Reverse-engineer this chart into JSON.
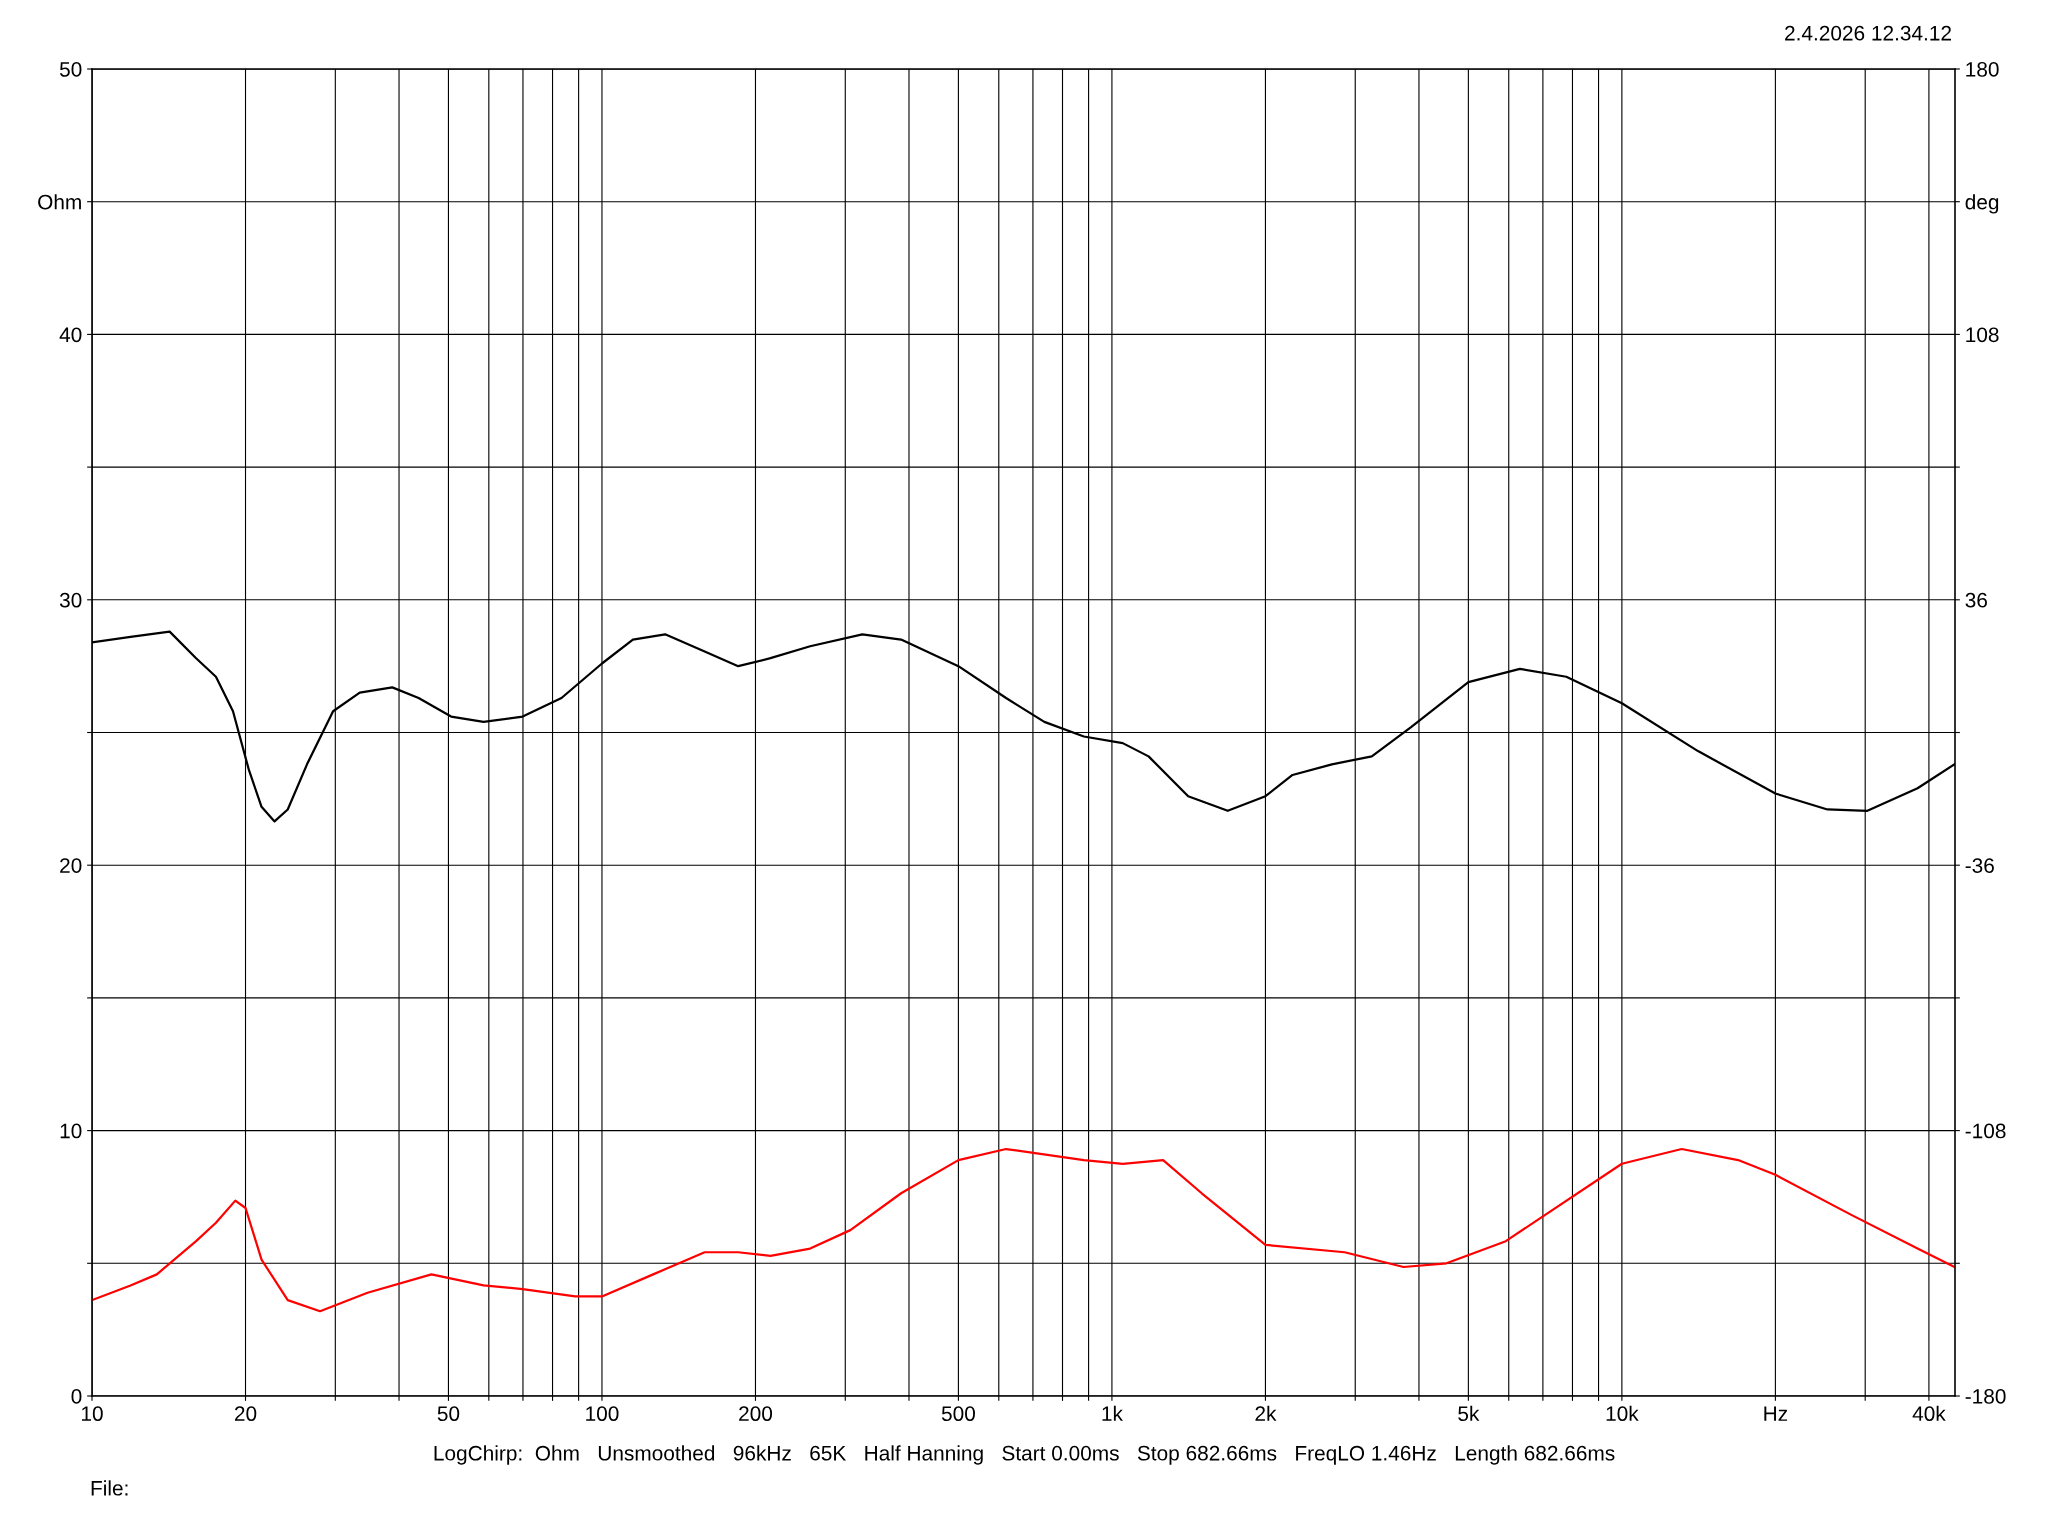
{
  "chart_data": {
    "type": "line",
    "log": "x",
    "grid": true,
    "annotations": [
      "2.4.2026 12.34.12",
      "LogChirp:  Ohm   Unsmoothed   96kHz   65K   Half Hanning   Start 0.00ms   Stop 682.66ms   FreqLO 1.46Hz   Length 682.66ms",
      "File:"
    ],
    "xlim": [
      10,
      45000
    ],
    "xticks": [
      10,
      20,
      {
        "value": 30,
        "label": null
      },
      {
        "value": 40,
        "label": null
      },
      50,
      {
        "value": 60,
        "label": null
      },
      {
        "value": 70,
        "label": null
      },
      {
        "value": 80,
        "label": null
      },
      {
        "value": 90,
        "label": null
      },
      100,
      200,
      {
        "value": 300,
        "label": null
      },
      {
        "value": 400,
        "label": null
      },
      500,
      {
        "value": 600,
        "label": null
      },
      {
        "value": 700,
        "label": null
      },
      {
        "value": 800,
        "label": null
      },
      {
        "value": 900,
        "label": null
      },
      {
        "value": 1000,
        "label": "1k"
      },
      {
        "value": 2000,
        "label": "2k"
      },
      {
        "value": 3000,
        "label": null
      },
      {
        "value": 4000,
        "label": null
      },
      {
        "value": 5000,
        "label": "5k"
      },
      {
        "value": 6000,
        "label": null
      },
      {
        "value": 7000,
        "label": null
      },
      {
        "value": 8000,
        "label": null
      },
      {
        "value": 9000,
        "label": null
      },
      {
        "value": 10000,
        "label": "10k"
      },
      {
        "value": 20000,
        "label": "Hz"
      },
      {
        "value": 30000,
        "label": null
      },
      {
        "value": 40000,
        "label": "40k"
      }
    ],
    "ylim": [
      0,
      50
    ],
    "yticks": [
      0,
      {
        "value": 5,
        "label": null
      },
      10,
      {
        "value": 15,
        "label": null
      },
      20,
      {
        "value": 25,
        "label": null
      },
      30,
      {
        "value": 35,
        "label": null
      },
      40,
      {
        "value": 45,
        "label": "Ohm"
      },
      50
    ],
    "y2lim": [
      -180,
      180
    ],
    "y2ticks": [
      -180,
      {
        "value": -144,
        "label": null
      },
      -108,
      {
        "value": -72,
        "label": null
      },
      -36,
      {
        "value": 0,
        "label": null
      },
      36,
      {
        "value": 72,
        "label": null
      },
      108,
      {
        "value": 144,
        "label": "deg"
      },
      180
    ],
    "series": [
      {
        "color": "#000000",
        "x": [
          10,
          11.9,
          14.2,
          16.0,
          17.5,
          18.9,
          20.3,
          21.5,
          22.8,
          24.2,
          26.4,
          29.7,
          33.5,
          38.8,
          43.7,
          50.6,
          58.6,
          69.9,
          83.3,
          100,
          115,
          133,
          159,
          185,
          214,
          256,
          324,
          386,
          500,
          620,
          737,
          881,
          1050,
          1180,
          1411,
          1687,
          2000,
          2260,
          2700,
          3233,
          3860,
          5000,
          6310,
          7780,
          10000,
          14100,
          20000,
          25300,
          30300,
          38000,
          44900
        ],
        "values": [
          28.4,
          28.6,
          28.8,
          27.8,
          27.1,
          25.8,
          23.6,
          22.2,
          21.65,
          22.1,
          23.8,
          25.8,
          26.5,
          26.7,
          26.3,
          25.6,
          25.4,
          25.6,
          26.3,
          27.6,
          28.5,
          28.7,
          28.05,
          27.5,
          27.8,
          28.25,
          28.7,
          28.5,
          27.5,
          26.3,
          25.4,
          24.85,
          24.6,
          24.1,
          22.6,
          22.05,
          22.6,
          23.4,
          23.8,
          24.1,
          25.2,
          26.9,
          27.4,
          27.1,
          26.1,
          24.3,
          22.7,
          22.1,
          22.05,
          22.9,
          23.8
        ]
      },
      {
        "color": "#ff0000",
        "axis": "y2",
        "x": [
          10,
          11.9,
          13.4,
          16.0,
          17.5,
          19.1,
          20.0,
          21.5,
          24.2,
          28.0,
          34.7,
          46.3,
          58.6,
          69.9,
          88.6,
          100,
          126,
          159,
          185,
          214,
          256,
          307,
          386,
          500,
          620,
          881,
          1050,
          1260,
          1500,
          2000,
          2860,
          3730,
          4530,
          5920,
          10000,
          13100,
          16900,
          20000,
          28300,
          38000,
          44900
        ],
        "values": [
          -154,
          -150,
          -147,
          -138,
          -133,
          -127,
          -129,
          -143,
          -154,
          -157,
          -152,
          -147,
          -150,
          -151,
          -153,
          -153,
          -147,
          -141,
          -141,
          -142,
          -140,
          -135,
          -125,
          -116,
          -113,
          -116,
          -117,
          -116,
          -125,
          -139,
          -141,
          -145,
          -144,
          -138,
          -117,
          -113,
          -116,
          -120,
          -131,
          -140,
          -145
        ]
      }
    ]
  }
}
